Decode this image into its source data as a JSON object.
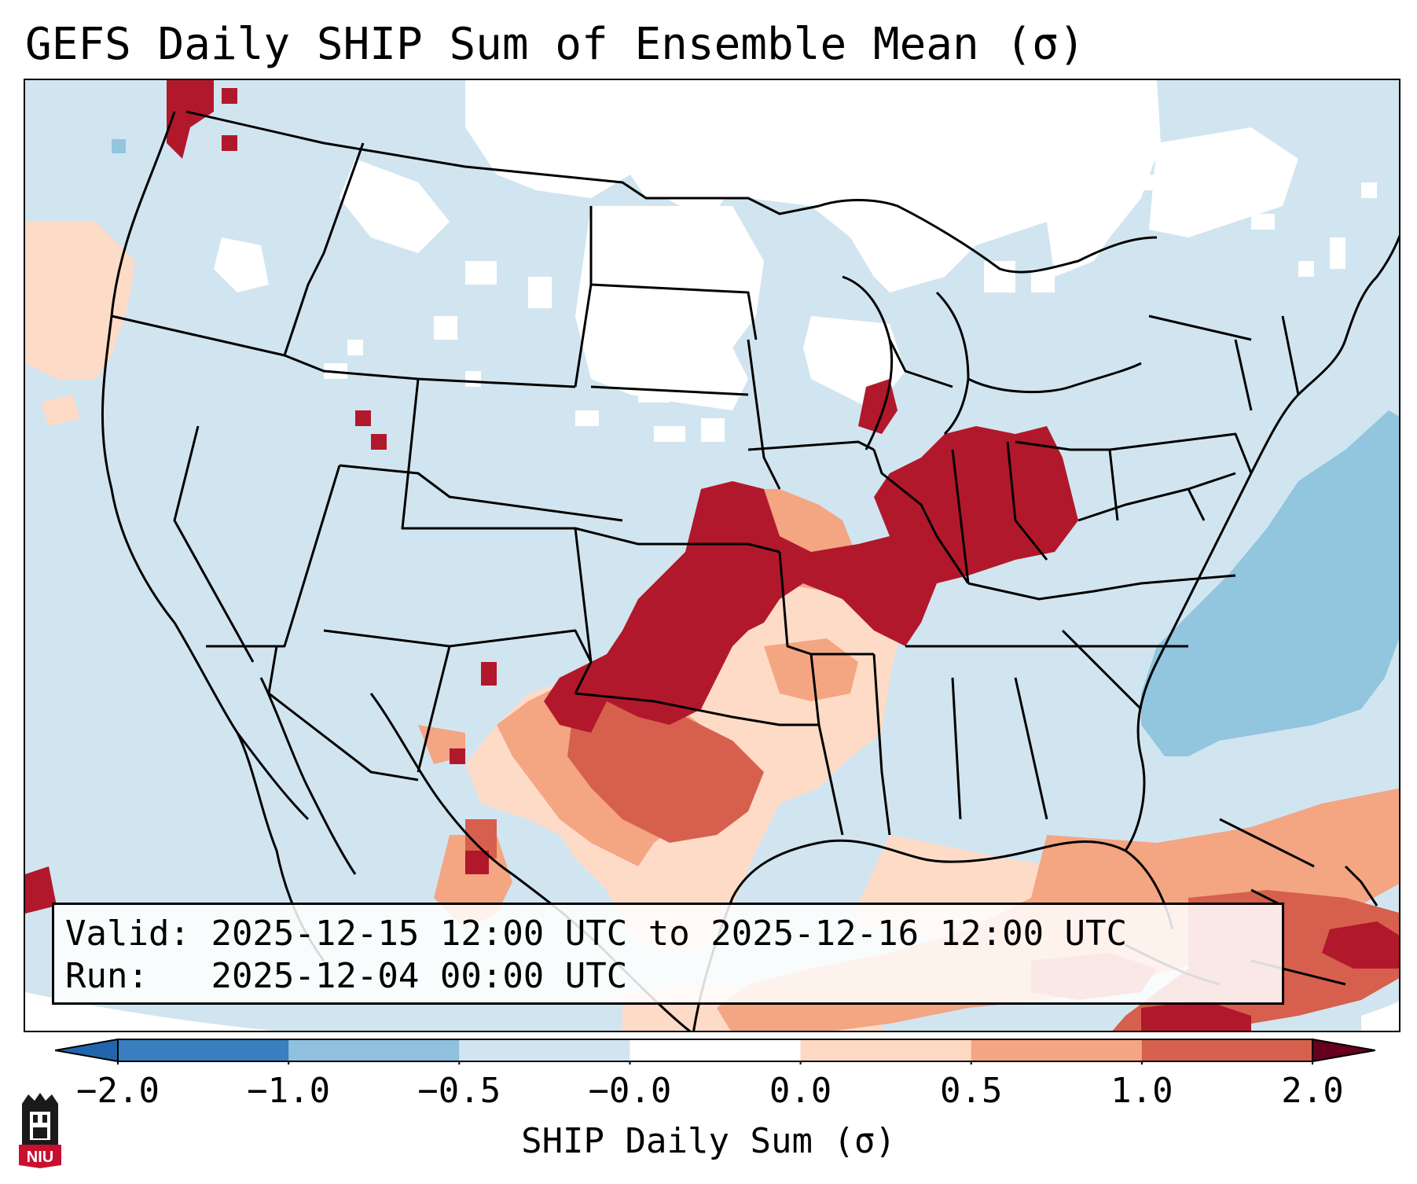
{
  "title": "GEFS Daily SHIP Sum of Ensemble Mean (σ)",
  "info": {
    "valid_label": "Valid:",
    "valid_value": "2025-12-15 12:00 UTC to 2025-12-16 12:00 UTC",
    "run_label": "Run:",
    "run_value": "2025-12-04 00:00 UTC"
  },
  "colorbar": {
    "label": "SHIP Daily Sum (σ)",
    "ticks": [
      "−2.0",
      "−1.0",
      "−0.5",
      "−0.0",
      "0.0",
      "0.5",
      "1.0",
      "2.0"
    ],
    "colors": [
      "#3a7fbf",
      "#8fc0de",
      "#d1e5f0",
      "#ffffff",
      "#fdd9c4",
      "#f4a582",
      "#d6604d",
      "#b2182b"
    ]
  },
  "map": {
    "region": "Contiguous United States",
    "background_color": "#d1e5f0",
    "outside_color": "#ffffff",
    "state_line_color": "#000000"
  },
  "logo": {
    "text": "NIU",
    "color": "#c8102e"
  }
}
